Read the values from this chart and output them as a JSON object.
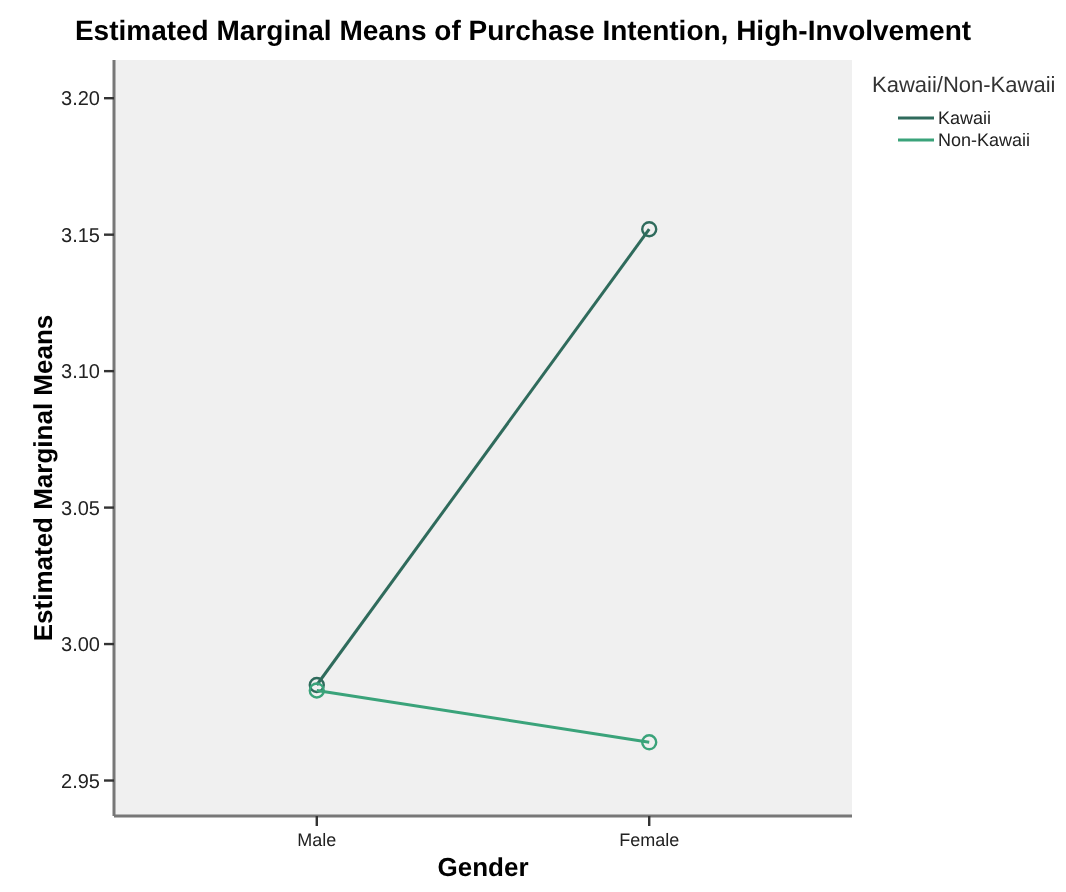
{
  "chart_data": {
    "type": "line",
    "title": "Estimated Marginal Means of Purchase Intention, High-Involvement",
    "xlabel": "Gender",
    "ylabel": "Estimated Marginal Means",
    "legend_title": "Kawaii/Non-Kawaii",
    "categories": [
      "Male",
      "Female"
    ],
    "series": [
      {
        "name": "Kawaii",
        "color": "#2f6b5c",
        "values": [
          2.985,
          3.152
        ]
      },
      {
        "name": "Non-Kawaii",
        "color": "#3aa37a",
        "values": [
          2.983,
          2.964
        ]
      }
    ],
    "ylim": [
      2.937,
      3.214
    ],
    "yticks": [
      {
        "value": 2.95,
        "label": "2.95"
      },
      {
        "value": 3.0,
        "label": "3.00"
      },
      {
        "value": 3.05,
        "label": "3.05"
      },
      {
        "value": 3.1,
        "label": "3.10"
      },
      {
        "value": 3.15,
        "label": "3.15"
      },
      {
        "value": 3.2,
        "label": "3.20"
      }
    ],
    "grid": false,
    "legend": "top right",
    "marker": "circle",
    "line_style": "solid"
  }
}
